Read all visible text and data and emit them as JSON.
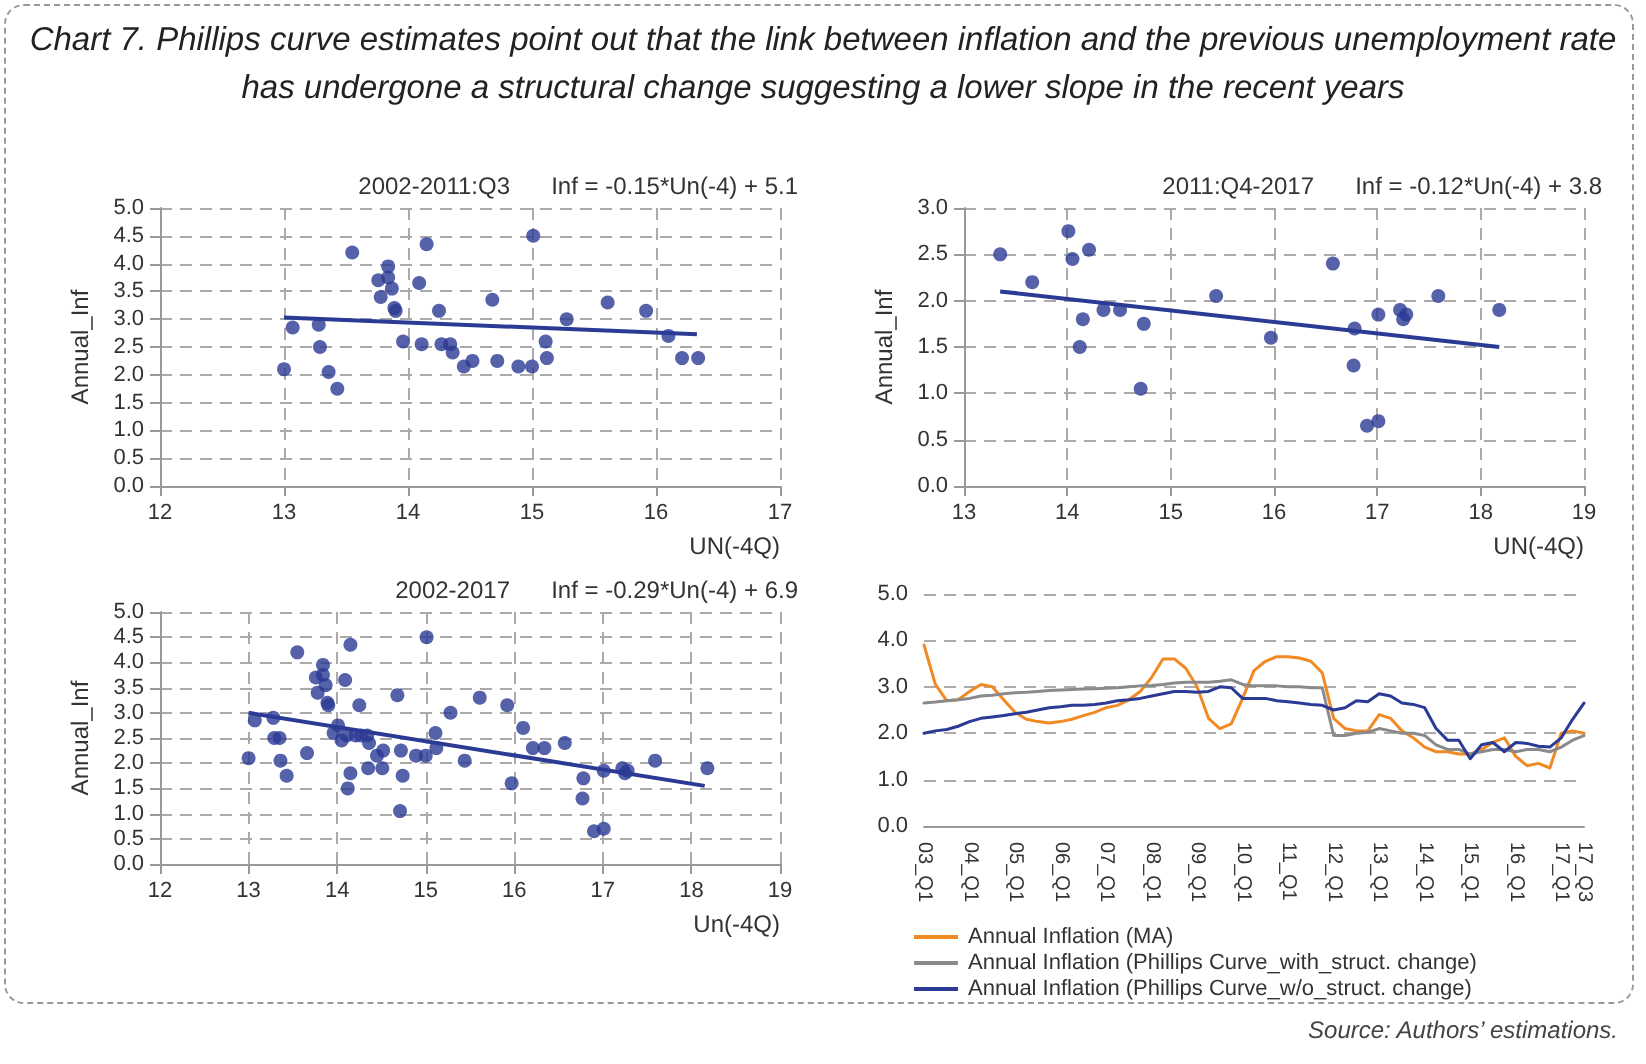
{
  "chart_data": [
    {
      "type": "other",
      "title": "Chart 7. Phillips curve estimates point out that the link between inflation and the previous unemployment rate has undergone a structural change suggesting a lower slope in the recent years",
      "annotations": [
        "Source: Authors’ estimations."
      ]
    },
    {
      "type": "scatter",
      "title": "2002-2011:Q3",
      "annotations": [
        "Inf = -0.15*Un(-4) + 5.1"
      ],
      "xlabel": "UN(-4Q)",
      "ylabel": "Annual_Inf",
      "xlim": [
        12,
        17
      ],
      "xticks": [
        12,
        13,
        14,
        15,
        16,
        17
      ],
      "ylim": [
        0,
        5
      ],
      "yticks": [
        {
          "value": 0,
          "label": "0.0"
        },
        0.5,
        {
          "value": 1,
          "label": "1.0"
        },
        1.5,
        {
          "value": 2,
          "label": "2.0"
        },
        2.5,
        {
          "value": 3,
          "label": "3.0"
        },
        3.5,
        {
          "value": 4,
          "label": "4.0"
        },
        4.5,
        {
          "value": 5,
          "label": "5.0"
        }
      ],
      "grid": true,
      "marker": "circle",
      "series": [
        {
          "color": "#2b3a94",
          "x": [
            13.0,
            13.07,
            13.28,
            13.29,
            13.36,
            13.43,
            13.55,
            13.84,
            13.76,
            13.84,
            13.78,
            13.87,
            13.89,
            13.9,
            13.96,
            14.09,
            14.15,
            14.11,
            14.25,
            14.27,
            14.34,
            14.36,
            14.45,
            14.52,
            14.68,
            14.72,
            14.89,
            15.0,
            15.01,
            15.11,
            15.12,
            15.28,
            15.61,
            15.92,
            16.1,
            16.21,
            16.34
          ],
          "values": [
            2.1,
            2.85,
            2.9,
            2.5,
            2.05,
            1.75,
            4.2,
            3.95,
            3.7,
            3.75,
            3.4,
            3.55,
            3.2,
            3.15,
            2.6,
            3.65,
            4.35,
            2.55,
            3.15,
            2.55,
            2.55,
            2.4,
            2.15,
            2.25,
            3.35,
            2.25,
            2.15,
            2.15,
            4.5,
            2.6,
            2.3,
            3.0,
            3.3,
            3.15,
            2.7,
            2.3,
            2.3
          ]
        },
        {
          "type": "line",
          "color": "#2b3a94",
          "marker": "none",
          "x": [
            13.0,
            16.33
          ],
          "values": [
            3.03,
            2.73
          ]
        }
      ]
    },
    {
      "type": "scatter",
      "title": "2011:Q4-2017",
      "annotations": [
        "Inf = -0.12*Un(-4) + 3.8"
      ],
      "xlabel": "UN(-4Q)",
      "ylabel": "Annual_Inf",
      "xlim": [
        13,
        19
      ],
      "xticks": [
        13,
        14,
        15,
        16,
        17,
        18,
        19
      ],
      "ylim": [
        0,
        3
      ],
      "yticks": [
        {
          "value": 0,
          "label": "0.0"
        },
        0.5,
        {
          "value": 1,
          "label": "1.0"
        },
        1.5,
        {
          "value": 2,
          "label": "2.0"
        },
        2.5,
        {
          "value": 3,
          "label": "3.0"
        }
      ],
      "grid": true,
      "marker": "circle",
      "series": [
        {
          "color": "#2b3a94",
          "x": [
            13.35,
            13.66,
            14.01,
            14.05,
            14.21,
            14.15,
            14.12,
            14.35,
            14.51,
            14.74,
            15.44,
            15.97,
            16.57,
            16.78,
            16.77,
            17.01,
            17.22,
            17.28,
            17.25,
            17.59,
            18.18,
            14.71,
            16.9,
            17.01
          ],
          "values": [
            2.5,
            2.2,
            2.75,
            2.45,
            2.55,
            1.8,
            1.5,
            1.9,
            1.9,
            1.75,
            2.05,
            1.6,
            2.4,
            1.7,
            1.3,
            1.85,
            1.9,
            1.85,
            1.8,
            2.05,
            1.9,
            1.05,
            0.65,
            0.7
          ]
        },
        {
          "type": "line",
          "color": "#2b3a94",
          "marker": "none",
          "x": [
            13.35,
            18.18
          ],
          "values": [
            2.1,
            1.5
          ]
        }
      ]
    },
    {
      "type": "scatter",
      "title": "2002-2017",
      "annotations": [
        "Inf = -0.29*Un(-4) + 6.9"
      ],
      "xlabel": "Un(-4Q)",
      "ylabel": "Annual_Inf",
      "xlim": [
        12,
        19
      ],
      "xticks": [
        12,
        13,
        14,
        15,
        16,
        17,
        18,
        19
      ],
      "ylim": [
        0,
        5
      ],
      "yticks": [
        {
          "value": 0,
          "label": "0.0"
        },
        0.5,
        {
          "value": 1,
          "label": "1.0"
        },
        1.5,
        {
          "value": 2,
          "label": "2.0"
        },
        2.5,
        {
          "value": 3,
          "label": "3.0"
        },
        3.5,
        {
          "value": 4,
          "label": "4.0"
        },
        4.5,
        {
          "value": 5,
          "label": "5.0"
        }
      ],
      "grid": true,
      "marker": "circle",
      "series": [
        {
          "color": "#2b3a94",
          "x": [
            13.0,
            13.07,
            13.28,
            13.29,
            13.36,
            13.43,
            13.55,
            13.84,
            13.76,
            13.84,
            13.78,
            13.87,
            13.89,
            13.9,
            13.96,
            14.09,
            14.15,
            14.11,
            14.25,
            14.27,
            14.34,
            14.36,
            14.45,
            14.52,
            14.68,
            14.72,
            14.89,
            15.0,
            15.01,
            15.11,
            15.12,
            15.28,
            15.61,
            15.92,
            16.1,
            16.21,
            16.34,
            13.35,
            13.66,
            14.01,
            14.05,
            14.21,
            14.15,
            14.12,
            14.35,
            14.51,
            14.74,
            15.44,
            15.97,
            16.57,
            16.78,
            16.77,
            17.01,
            17.22,
            17.28,
            17.25,
            17.59,
            18.18,
            14.71,
            16.9,
            17.01
          ],
          "values": [
            2.1,
            2.85,
            2.9,
            2.5,
            2.05,
            1.75,
            4.2,
            3.95,
            3.7,
            3.75,
            3.4,
            3.55,
            3.2,
            3.15,
            2.6,
            3.65,
            4.35,
            2.55,
            3.15,
            2.55,
            2.55,
            2.4,
            2.15,
            2.25,
            3.35,
            2.25,
            2.15,
            2.15,
            4.5,
            2.6,
            2.3,
            3.0,
            3.3,
            3.15,
            2.7,
            2.3,
            2.3,
            2.5,
            2.2,
            2.75,
            2.45,
            2.55,
            1.8,
            1.5,
            1.9,
            1.9,
            1.75,
            2.05,
            1.6,
            2.4,
            1.7,
            1.3,
            1.85,
            1.9,
            1.85,
            1.8,
            2.05,
            1.9,
            1.05,
            0.65,
            0.7
          ]
        },
        {
          "type": "line",
          "color": "#2b3a94",
          "marker": "none",
          "x": [
            13.0,
            18.15
          ],
          "values": [
            3.0,
            1.55
          ]
        }
      ]
    },
    {
      "type": "line",
      "categories": [
        "03_Q1",
        null,
        null,
        null,
        "04_Q1",
        null,
        null,
        null,
        "05_Q1",
        null,
        null,
        null,
        "06_Q1",
        null,
        null,
        null,
        "07_Q1",
        null,
        null,
        null,
        "08_Q1",
        null,
        null,
        null,
        "09_Q1",
        null,
        null,
        null,
        "10_Q1",
        null,
        null,
        null,
        "11_Q1",
        null,
        null,
        null,
        "12_Q1",
        null,
        null,
        null,
        "13_Q1",
        null,
        null,
        null,
        "14_Q1",
        null,
        null,
        null,
        "15_Q1",
        null,
        null,
        null,
        "16_Q1",
        null,
        null,
        null,
        "17_Q1",
        null,
        "17_Q3"
      ],
      "ylim": [
        0,
        5
      ],
      "yticks": [
        {
          "value": 0,
          "label": "0.0"
        },
        {
          "value": 1,
          "label": "1.0"
        },
        {
          "value": 2,
          "label": "2.0"
        },
        {
          "value": 3,
          "label": "3.0"
        },
        {
          "value": 4,
          "label": "4.0"
        },
        {
          "value": 5,
          "label": "5.0"
        }
      ],
      "grid": "y",
      "legend": "bottom",
      "marker": "none",
      "line_style": "solid",
      "series": [
        {
          "name": "Annual Inflation (MA)",
          "color": "#f08a24",
          "values": [
            3.9,
            3.05,
            2.7,
            2.72,
            2.9,
            3.05,
            3.0,
            2.72,
            2.45,
            2.3,
            2.25,
            2.22,
            2.25,
            2.3,
            2.38,
            2.45,
            2.55,
            2.6,
            2.72,
            2.9,
            3.2,
            3.6,
            3.6,
            3.4,
            3.0,
            2.32,
            2.1,
            2.2,
            2.75,
            3.35,
            3.55,
            3.65,
            3.65,
            3.62,
            3.55,
            3.3,
            2.32,
            2.1,
            2.05,
            2.05,
            2.4,
            2.32,
            2.05,
            1.9,
            1.7,
            1.6,
            1.6,
            1.55,
            1.55,
            1.65,
            1.8,
            1.9,
            1.5,
            1.3,
            1.35,
            1.25,
            2.0,
            2.05,
            2.0
          ]
        },
        {
          "name": "Annual Inflation (Phillips Curve_with_struct. change)",
          "color": "#8a8a8a",
          "values": [
            2.65,
            2.67,
            2.7,
            2.72,
            2.75,
            2.8,
            2.82,
            2.85,
            2.87,
            2.88,
            2.9,
            2.92,
            2.93,
            2.94,
            2.95,
            2.96,
            2.97,
            2.98,
            3.0,
            3.02,
            3.03,
            3.05,
            3.08,
            3.1,
            3.1,
            3.1,
            3.12,
            3.15,
            3.05,
            3.02,
            3.02,
            3.02,
            3.0,
            3.0,
            2.98,
            2.98,
            1.95,
            1.95,
            2.0,
            2.02,
            2.1,
            2.05,
            2.0,
            2.0,
            1.95,
            1.75,
            1.65,
            1.65,
            1.55,
            1.6,
            1.65,
            1.65,
            1.6,
            1.65,
            1.65,
            1.6,
            1.7,
            1.85,
            1.95
          ]
        },
        {
          "name": "Annual Inflation (Phillips Curve_w/o_struct. change)",
          "color": "#2b3a94",
          "values": [
            2.0,
            2.05,
            2.08,
            2.15,
            2.25,
            2.32,
            2.35,
            2.38,
            2.42,
            2.45,
            2.5,
            2.55,
            2.57,
            2.6,
            2.6,
            2.62,
            2.65,
            2.7,
            2.72,
            2.75,
            2.8,
            2.85,
            2.9,
            2.9,
            2.88,
            2.9,
            3.0,
            2.98,
            2.75,
            2.75,
            2.75,
            2.7,
            2.68,
            2.65,
            2.62,
            2.6,
            2.5,
            2.55,
            2.7,
            2.68,
            2.85,
            2.8,
            2.65,
            2.62,
            2.55,
            2.1,
            1.85,
            1.85,
            1.45,
            1.75,
            1.8,
            1.6,
            1.8,
            1.78,
            1.72,
            1.7,
            1.9,
            2.3,
            2.65
          ]
        }
      ]
    }
  ]
}
